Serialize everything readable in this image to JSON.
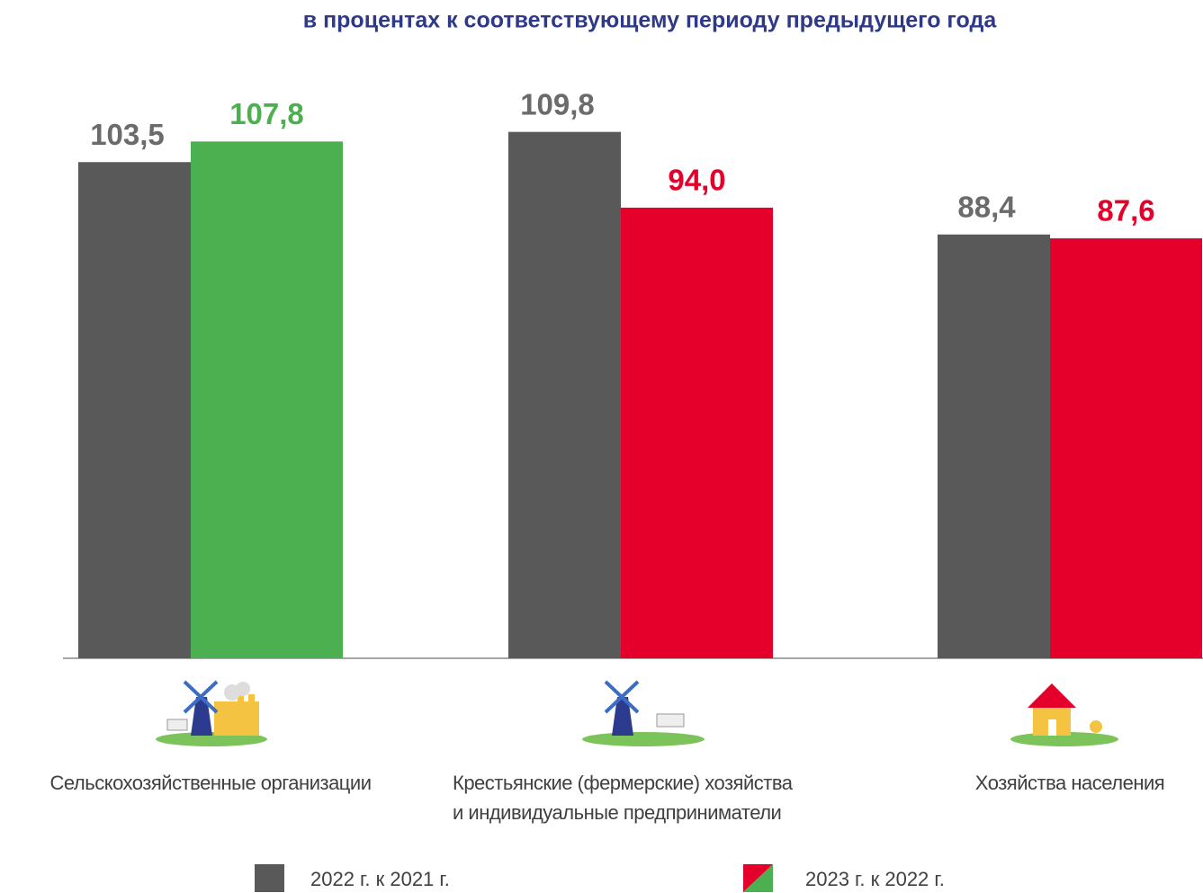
{
  "chart_data": {
    "type": "bar",
    "title": "в процентах к соответствующему периоду предыдущего года",
    "categories": [
      "Сельскохозяйственные организации",
      "Крестьянские (фермерские) хозяйства\nи индивидуальные предприниматели",
      "Хозяйства населения"
    ],
    "series": [
      {
        "name": "2022 г. к 2021 г.",
        "color": "#595959",
        "values": [
          103.5,
          109.8,
          88.4
        ],
        "value_labels": [
          "103,5",
          "109,8",
          "88,4"
        ]
      },
      {
        "name": "2023 г. к 2022 г.",
        "colors": [
          "#4caf50",
          "#e4002b",
          "#e4002b"
        ],
        "values": [
          107.8,
          94.0,
          87.6
        ],
        "value_labels": [
          "107,8",
          "94,0",
          "87,6"
        ]
      }
    ],
    "ylim": [
      0,
      130
    ]
  }
}
